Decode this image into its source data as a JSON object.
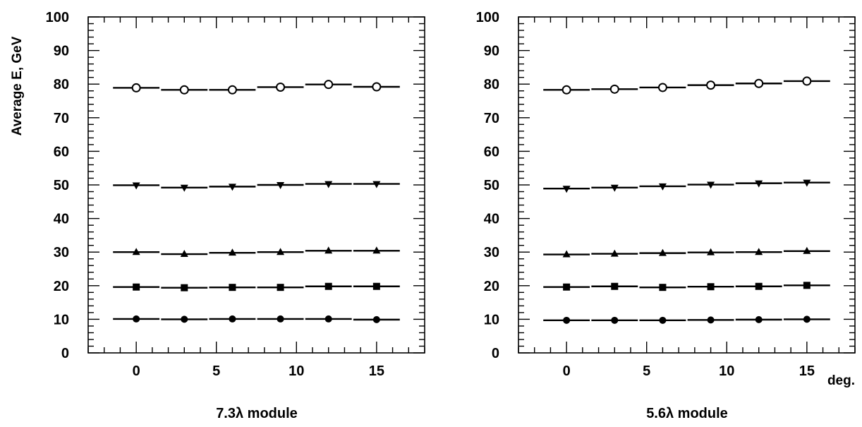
{
  "chart_data": [
    {
      "type": "scatter",
      "caption": "7.3λ module",
      "ylabel": "Average E, GeV",
      "xlabel": "",
      "xlim": [
        -3,
        18
      ],
      "ylim": [
        0,
        100
      ],
      "x_ticks": [
        0,
        5,
        10,
        15
      ],
      "y_ticks": [
        0,
        10,
        20,
        30,
        40,
        50,
        60,
        70,
        80,
        90,
        100
      ],
      "x": [
        0,
        3,
        6,
        9,
        12,
        15
      ],
      "series": [
        {
          "marker": "circle-filled",
          "values": [
            10.1,
            10.0,
            10.1,
            10.1,
            10.1,
            9.9
          ]
        },
        {
          "marker": "square-filled",
          "values": [
            19.6,
            19.4,
            19.5,
            19.5,
            19.8,
            19.8
          ]
        },
        {
          "marker": "triangle-up-filled",
          "values": [
            30.0,
            29.4,
            29.8,
            30.0,
            30.4,
            30.4
          ]
        },
        {
          "marker": "triangle-down-filled",
          "values": [
            49.9,
            49.2,
            49.5,
            50.0,
            50.3,
            50.3
          ]
        },
        {
          "marker": "circle-open",
          "values": [
            78.9,
            78.3,
            78.3,
            79.1,
            79.9,
            79.2
          ]
        }
      ],
      "grid": false
    },
    {
      "type": "scatter",
      "caption": "5.6λ module",
      "ylabel": "",
      "xlabel": "deg.",
      "xlim": [
        -3,
        18
      ],
      "ylim": [
        0,
        100
      ],
      "x_ticks": [
        0,
        5,
        10,
        15
      ],
      "y_ticks": [
        0,
        10,
        20,
        30,
        40,
        50,
        60,
        70,
        80,
        90,
        100
      ],
      "x": [
        0,
        3,
        6,
        9,
        12,
        15
      ],
      "series": [
        {
          "marker": "circle-filled",
          "values": [
            9.7,
            9.7,
            9.7,
            9.8,
            9.9,
            10.0
          ]
        },
        {
          "marker": "square-filled",
          "values": [
            19.6,
            19.8,
            19.5,
            19.7,
            19.8,
            20.1
          ]
        },
        {
          "marker": "triangle-up-filled",
          "values": [
            29.3,
            29.5,
            29.7,
            29.9,
            30.0,
            30.3
          ]
        },
        {
          "marker": "triangle-down-filled",
          "values": [
            48.9,
            49.2,
            49.6,
            50.1,
            50.5,
            50.7
          ]
        },
        {
          "marker": "circle-open",
          "values": [
            78.3,
            78.5,
            79.0,
            79.7,
            80.2,
            80.9
          ]
        }
      ],
      "grid": false
    }
  ]
}
